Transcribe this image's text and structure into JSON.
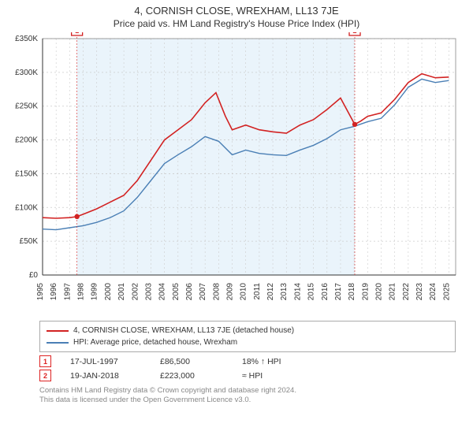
{
  "title": "4, CORNISH CLOSE, WREXHAM, LL13 7JE",
  "subtitle": "Price paid vs. HM Land Registry's House Price Index (HPI)",
  "chart": {
    "type": "line",
    "x_start": 1995,
    "x_end": 2025.5,
    "y_min": 0,
    "y_max": 350000,
    "y_ticks": [
      0,
      50000,
      100000,
      150000,
      200000,
      250000,
      300000,
      350000
    ],
    "y_tick_labels": [
      "£0",
      "£50K",
      "£100K",
      "£150K",
      "£200K",
      "£250K",
      "£300K",
      "£350K"
    ],
    "x_ticks": [
      1995,
      1996,
      1997,
      1998,
      1999,
      2000,
      2001,
      2002,
      2003,
      2004,
      2005,
      2006,
      2007,
      2008,
      2009,
      2010,
      2011,
      2012,
      2013,
      2014,
      2015,
      2016,
      2017,
      2018,
      2019,
      2020,
      2021,
      2022,
      2023,
      2024,
      2025
    ],
    "background_color": "#ffffff",
    "plot_bg": "#ffffff",
    "grid_color": "#cccccc",
    "bands": [
      {
        "from": 1997.54,
        "to": 2018.05,
        "color": "#eaf4fb"
      }
    ],
    "series": [
      {
        "name": "property",
        "label": "4, CORNISH CLOSE, WREXHAM, LL13 7JE (detached house)",
        "color": "#d22222",
        "stroke_width": 1.6,
        "data": [
          [
            1995,
            85000
          ],
          [
            1996,
            84000
          ],
          [
            1997,
            85000
          ],
          [
            1997.54,
            86500
          ],
          [
            1998,
            90000
          ],
          [
            1999,
            98000
          ],
          [
            2000,
            108000
          ],
          [
            2001,
            118000
          ],
          [
            2002,
            140000
          ],
          [
            2003,
            170000
          ],
          [
            2004,
            200000
          ],
          [
            2005,
            215000
          ],
          [
            2006,
            230000
          ],
          [
            2007,
            255000
          ],
          [
            2007.8,
            270000
          ],
          [
            2008.5,
            235000
          ],
          [
            2009,
            215000
          ],
          [
            2010,
            222000
          ],
          [
            2011,
            215000
          ],
          [
            2012,
            212000
          ],
          [
            2013,
            210000
          ],
          [
            2014,
            222000
          ],
          [
            2015,
            230000
          ],
          [
            2016,
            245000
          ],
          [
            2017,
            262000
          ],
          [
            2018.05,
            223000
          ],
          [
            2018.5,
            228000
          ],
          [
            2019,
            235000
          ],
          [
            2020,
            240000
          ],
          [
            2021,
            260000
          ],
          [
            2022,
            285000
          ],
          [
            2023,
            298000
          ],
          [
            2024,
            292000
          ],
          [
            2025,
            293000
          ]
        ]
      },
      {
        "name": "hpi",
        "label": "HPI: Average price, detached house, Wrexham",
        "color": "#4a7fb5",
        "stroke_width": 1.4,
        "data": [
          [
            1995,
            68000
          ],
          [
            1996,
            67000
          ],
          [
            1997,
            70000
          ],
          [
            1998,
            73000
          ],
          [
            1999,
            78000
          ],
          [
            2000,
            85000
          ],
          [
            2001,
            95000
          ],
          [
            2002,
            115000
          ],
          [
            2003,
            140000
          ],
          [
            2004,
            165000
          ],
          [
            2005,
            178000
          ],
          [
            2006,
            190000
          ],
          [
            2007,
            205000
          ],
          [
            2008,
            198000
          ],
          [
            2009,
            178000
          ],
          [
            2010,
            185000
          ],
          [
            2011,
            180000
          ],
          [
            2012,
            178000
          ],
          [
            2013,
            177000
          ],
          [
            2014,
            185000
          ],
          [
            2015,
            192000
          ],
          [
            2016,
            202000
          ],
          [
            2017,
            215000
          ],
          [
            2018,
            220000
          ],
          [
            2019,
            227000
          ],
          [
            2020,
            232000
          ],
          [
            2021,
            252000
          ],
          [
            2022,
            278000
          ],
          [
            2023,
            290000
          ],
          [
            2024,
            285000
          ],
          [
            2025,
            288000
          ]
        ]
      }
    ],
    "markers": [
      {
        "n": "1",
        "x": 1997.54,
        "y": 86500,
        "color": "#d22222"
      },
      {
        "n": "2",
        "x": 2018.05,
        "y": 223000,
        "color": "#d22222"
      }
    ]
  },
  "legend": {
    "items": [
      {
        "color": "#d22222",
        "label": "4, CORNISH CLOSE, WREXHAM, LL13 7JE (detached house)"
      },
      {
        "color": "#4a7fb5",
        "label": "HPI: Average price, detached house, Wrexham"
      }
    ]
  },
  "transactions": [
    {
      "n": "1",
      "date": "17-JUL-1997",
      "price": "£86,500",
      "hpi": "18% ↑ HPI"
    },
    {
      "n": "2",
      "date": "19-JAN-2018",
      "price": "£223,000",
      "hpi": "≈ HPI"
    }
  ],
  "footer": {
    "line1": "Contains HM Land Registry data © Crown copyright and database right 2024.",
    "line2": "This data is licensed under the Open Government Licence v3.0."
  }
}
